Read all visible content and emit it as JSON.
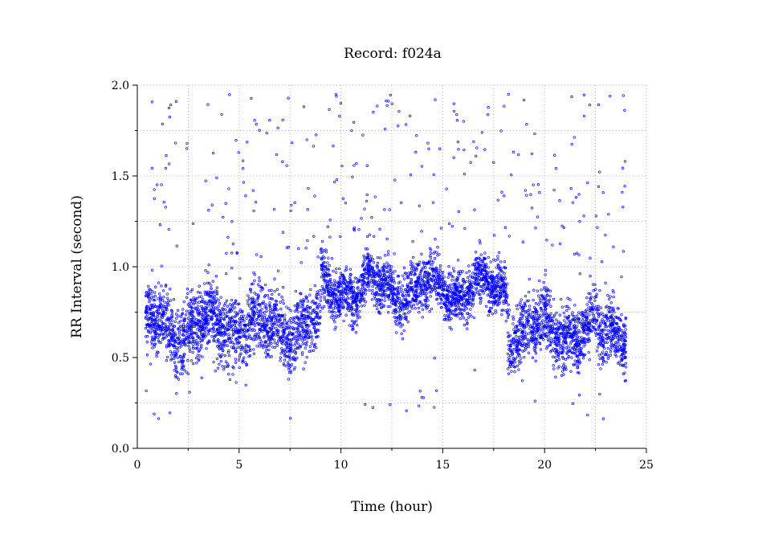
{
  "chart_data": {
    "type": "scatter",
    "title": "Record:  f024a",
    "xlabel": "Time (hour)",
    "ylabel": "RR Interval (second)",
    "xlim": [
      0,
      25
    ],
    "ylim": [
      0,
      2.0
    ],
    "x_ticks": [
      "0",
      "5",
      "10",
      "15",
      "20",
      "25"
    ],
    "y_ticks": [
      "0.0",
      "0.5",
      "1.0",
      "1.5",
      "2.0"
    ],
    "grid": true,
    "point_color": "#0000ff",
    "marker": "open-circle",
    "segments": [
      {
        "x_start": 0.4,
        "x_end": 9.0,
        "center": 0.67,
        "spread": 0.22,
        "outlier_rate": 0.06
      },
      {
        "x_start": 9.0,
        "x_end": 18.2,
        "center": 0.88,
        "spread": 0.17,
        "outlier_rate": 0.05
      },
      {
        "x_start": 18.2,
        "x_end": 24.0,
        "center": 0.65,
        "spread": 0.2,
        "outlier_rate": 0.06
      }
    ]
  }
}
